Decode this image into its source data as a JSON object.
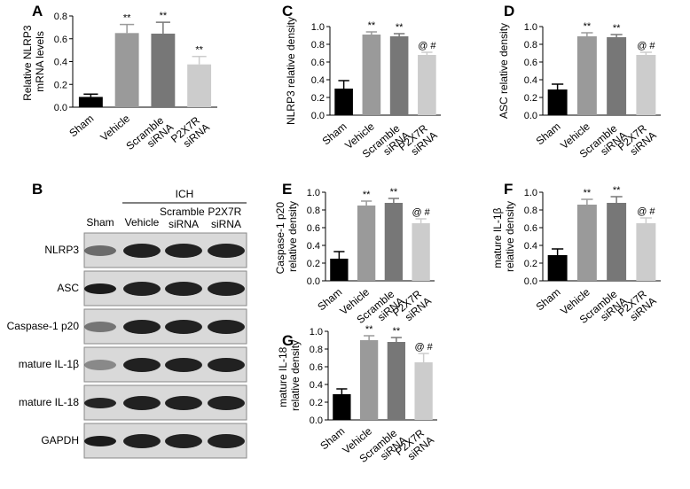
{
  "chart_data": [
    {
      "type": "bar",
      "panel": "A",
      "ylabel": "Relative NLRP3 mRNA levels",
      "categories": [
        "Sham",
        "Vehicle",
        "Scramble siRNA",
        "P2X7R siRNA"
      ],
      "values": [
        0.09,
        0.65,
        0.645,
        0.375
      ],
      "errors": [
        0.025,
        0.075,
        0.1,
        0.07
      ],
      "colors": [
        "#000000",
        "#9a9a9a",
        "#777777",
        "#cccccc"
      ],
      "annotations": [
        null,
        "**",
        "**",
        "**"
      ],
      "ylim": [
        0,
        0.8
      ],
      "yticks": [
        {
          "value": 0,
          "label": "0.0"
        },
        0.2,
        0.4,
        0.6,
        0.8
      ]
    },
    {
      "type": "bar",
      "panel": "C",
      "ylabel": "NLRP3 relative density",
      "categories": [
        "Sham",
        "Vehicle",
        "Scramble siRNA",
        "P2X7R siRNA"
      ],
      "values": [
        0.3,
        0.91,
        0.89,
        0.68
      ],
      "errors": [
        0.09,
        0.03,
        0.03,
        0.03
      ],
      "colors": [
        "#000000",
        "#9a9a9a",
        "#777777",
        "#cccccc"
      ],
      "annotations": [
        null,
        "**",
        "**",
        "@ #"
      ],
      "ylim": [
        0,
        1
      ],
      "yticks": [
        {
          "value": 0,
          "label": "0.0"
        },
        0.2,
        0.4,
        0.6,
        0.8,
        {
          "value": 1,
          "label": "1.0"
        }
      ]
    },
    {
      "type": "bar",
      "panel": "D",
      "ylabel": "ASC relative density",
      "categories": [
        "Sham",
        "Vehicle",
        "Scramble siRNA",
        "P2X7R siRNA"
      ],
      "values": [
        0.29,
        0.89,
        0.88,
        0.68
      ],
      "errors": [
        0.06,
        0.04,
        0.03,
        0.03
      ],
      "colors": [
        "#000000",
        "#9a9a9a",
        "#777777",
        "#cccccc"
      ],
      "annotations": [
        null,
        "**",
        "**",
        "@ #"
      ],
      "ylim": [
        0,
        1
      ],
      "yticks": [
        {
          "value": 0,
          "label": "0.0"
        },
        0.2,
        0.4,
        0.6,
        0.8,
        {
          "value": 1,
          "label": "1.0"
        }
      ]
    },
    {
      "type": "bar",
      "panel": "E",
      "ylabel": "Caspase-1 p20 relative density",
      "categories": [
        "Sham",
        "Vehicle",
        "Scramble siRNA",
        "P2X7R siRNA"
      ],
      "values": [
        0.25,
        0.85,
        0.88,
        0.65
      ],
      "errors": [
        0.08,
        0.05,
        0.05,
        0.05
      ],
      "colors": [
        "#000000",
        "#9a9a9a",
        "#777777",
        "#cccccc"
      ],
      "annotations": [
        null,
        "**",
        "**",
        "@ #"
      ],
      "ylim": [
        0,
        1
      ],
      "yticks": [
        {
          "value": 0,
          "label": "0.0"
        },
        0.2,
        0.4,
        0.6,
        0.8,
        {
          "value": 1,
          "label": "1.0"
        }
      ]
    },
    {
      "type": "bar",
      "panel": "F",
      "ylabel": "mature IL-1β relative density",
      "categories": [
        "Sham",
        "Vehicle",
        "Scramble siRNA",
        "P2X7R siRNA"
      ],
      "values": [
        0.29,
        0.86,
        0.88,
        0.65
      ],
      "errors": [
        0.07,
        0.06,
        0.07,
        0.06
      ],
      "colors": [
        "#000000",
        "#9a9a9a",
        "#777777",
        "#cccccc"
      ],
      "annotations": [
        null,
        "**",
        "**",
        "@ #"
      ],
      "ylim": [
        0,
        1
      ],
      "yticks": [
        {
          "value": 0,
          "label": "0.0"
        },
        0.2,
        0.4,
        0.6,
        0.8,
        {
          "value": 1,
          "label": "1.0"
        }
      ]
    },
    {
      "type": "bar",
      "panel": "G",
      "ylabel": "mature IL-18 relative density",
      "categories": [
        "Sham",
        "Vehicle",
        "Scramble siRNA",
        "P2X7R siRNA"
      ],
      "values": [
        0.29,
        0.9,
        0.88,
        0.65
      ],
      "errors": [
        0.06,
        0.05,
        0.05,
        0.1
      ],
      "colors": [
        "#000000",
        "#9a9a9a",
        "#777777",
        "#cccccc"
      ],
      "annotations": [
        null,
        "**",
        "**",
        "@ #"
      ],
      "ylim": [
        0,
        1
      ],
      "yticks": [
        {
          "value": 0,
          "label": "0.0"
        },
        0.2,
        0.4,
        0.6,
        0.8,
        {
          "value": 1,
          "label": "1.0"
        }
      ]
    }
  ],
  "blot": {
    "panel": "B",
    "group": "ICH",
    "lanes": [
      "Sham",
      "Vehicle",
      "Scramble siRNA",
      "P2X7R siRNA"
    ],
    "rows": [
      "NLRP3",
      "ASC",
      "Caspase-1 p20",
      "mature IL-1β",
      "mature IL-18",
      "GAPDH"
    ]
  }
}
